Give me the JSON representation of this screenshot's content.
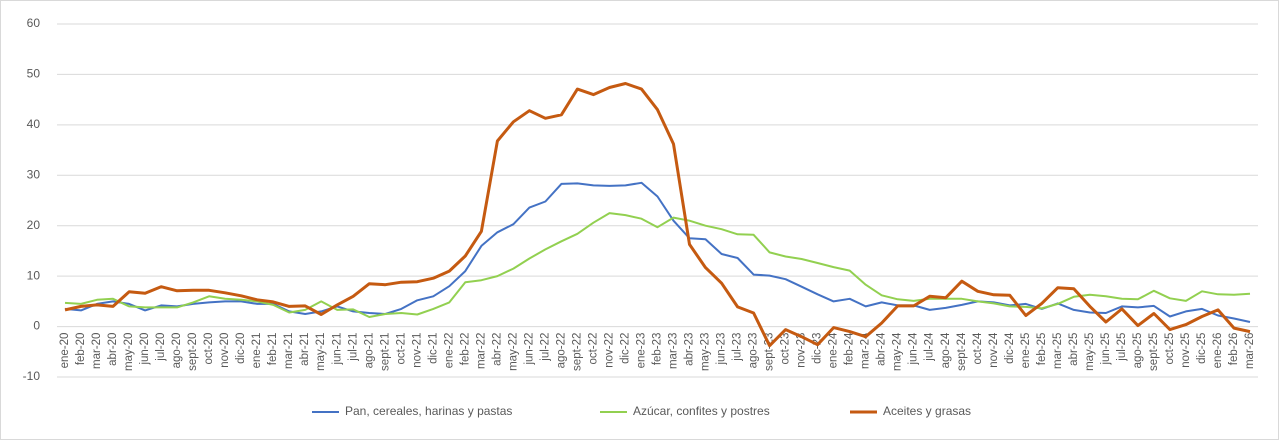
{
  "chart_data": {
    "type": "line",
    "categories": [
      "ene-20",
      "feb-20",
      "mar-20",
      "abr-20",
      "may-20",
      "jun-20",
      "jul-20",
      "ago-20",
      "sept-20",
      "oct-20",
      "nov-20",
      "dic-20",
      "ene-21",
      "feb-21",
      "mar-21",
      "abr-21",
      "may-21",
      "jun-21",
      "jul-21",
      "ago-21",
      "sept-21",
      "oct-21",
      "nov-21",
      "dic-21",
      "ene-22",
      "feb-22",
      "mar-22",
      "abr-22",
      "may-22",
      "jun-22",
      "jul-22",
      "ago-22",
      "sept-22",
      "oct-22",
      "nov-22",
      "dic-22",
      "ene-23",
      "feb-23",
      "mar-23",
      "abr-23",
      "may-23",
      "jun-23",
      "jul-23",
      "ago-23",
      "sept-23",
      "oct-23",
      "nov-23",
      "dic-23",
      "ene-24",
      "feb-24",
      "mar-24",
      "abr-24",
      "may-24",
      "jun-24",
      "jul-24",
      "ago-24",
      "sept-24",
      "oct-24",
      "nov-24",
      "dic-24",
      "ene-25",
      "feb-25",
      "mar-25",
      "abr-25",
      "may-25",
      "jun-25",
      "jul-25",
      "ago-25",
      "sept-25",
      "oct-25",
      "nov-25",
      "dic-25",
      "ene-26",
      "feb-26",
      "mar-26"
    ],
    "series": [
      {
        "name": "Pan, cereales, harinas y pastas",
        "color": "#4472c4",
        "values": [
          3.5,
          3.2,
          4.5,
          5,
          4.5,
          3.2,
          4.2,
          4.0,
          4.5,
          4.8,
          5.0,
          5.0,
          4.5,
          4.5,
          3.0,
          2.5,
          3.0,
          4.0,
          3.0,
          2.7,
          2.5,
          3.5,
          5.2,
          6.0,
          8.0,
          11.0,
          16.0,
          18.7,
          20.3,
          23.6,
          24.8,
          28.3,
          28.4,
          28.0,
          27.9,
          28.0,
          28.5,
          25.8,
          21.0,
          17.5,
          17.3,
          14.4,
          13.6,
          10.3,
          10.1,
          9.4,
          7.9,
          6.4,
          5.0,
          5.5,
          4.0,
          4.8,
          4.2,
          4.2,
          3.3,
          3.7,
          4.3,
          5.0,
          4.8,
          4.2,
          4.5,
          3.5,
          4.6,
          3.3,
          2.8,
          2.7,
          4.0,
          3.8,
          4.1,
          2.0,
          3.0,
          3.5,
          2.2,
          1.6,
          0.9
        ]
      },
      {
        "name": "Azúcar, confites y postres",
        "color": "#92d050",
        "values": [
          4.7,
          4.5,
          5.3,
          5.5,
          4.0,
          3.8,
          3.8,
          3.8,
          4.8,
          6.0,
          5.5,
          5.3,
          5.0,
          4.3,
          2.8,
          3.3,
          5.0,
          3.3,
          3.4,
          1.9,
          2.5,
          2.7,
          2.4,
          3.5,
          4.8,
          8.8,
          9.2,
          10.0,
          11.5,
          13.5,
          15.3,
          16.9,
          18.4,
          20.6,
          22.5,
          22.1,
          21.4,
          19.7,
          21.6,
          21.0,
          20.0,
          19.3,
          18.3,
          18.2,
          14.7,
          13.9,
          13.4,
          12.6,
          11.8,
          11.1,
          8.3,
          6.2,
          5.4,
          5.1,
          5.5,
          5.5,
          5.5,
          5.0,
          4.6,
          4.0,
          3.9,
          3.6,
          4.5,
          5.9,
          6.3,
          6.0,
          5.5,
          5.4,
          7.1,
          5.6,
          5.1,
          7.0,
          6.4,
          6.3,
          6.5
        ]
      },
      {
        "name": "Aceites y grasas",
        "color": "#c55a11",
        "values": [
          3.3,
          4.0,
          4.3,
          4.0,
          6.9,
          6.6,
          7.9,
          7.1,
          7.2,
          7.2,
          6.7,
          6.1,
          5.3,
          4.9,
          4.0,
          4.1,
          2.4,
          4.3,
          6.0,
          8.5,
          8.3,
          8.8,
          8.9,
          9.6,
          11.0,
          14.0,
          18.9,
          36.8,
          40.6,
          42.8,
          41.3,
          42.0,
          47.1,
          46.0,
          47.4,
          48.2,
          47.1,
          43.0,
          36.2,
          16.3,
          11.7,
          8.6,
          3.9,
          2.7,
          -3.8,
          -0.6,
          -2.0,
          -3.6,
          -0.2,
          -1.0,
          -2.0,
          0.7,
          4.1,
          4.1,
          6.0,
          5.7,
          9.0,
          7.0,
          6.3,
          6.2,
          2.2,
          4.6,
          7.7,
          7.5,
          4.0,
          0.9,
          3.5,
          0.2,
          2.6,
          -0.6,
          0.4,
          2.0,
          3.3,
          -0.3,
          -1.0
        ]
      }
    ],
    "ylim": [
      -10,
      60
    ],
    "yticks": [
      -10,
      0,
      10,
      20,
      30,
      40,
      50,
      60
    ],
    "grid": true,
    "legend": "bottom"
  }
}
